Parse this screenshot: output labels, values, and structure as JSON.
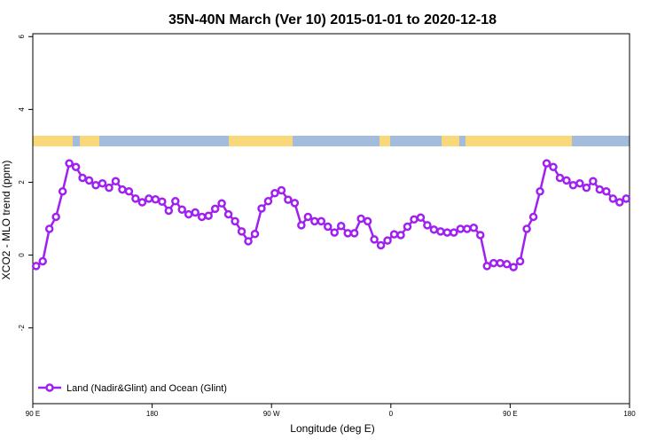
{
  "chart_data": {
    "type": "line",
    "title": "35N-40N March (Ver 10)   2015-01-01 to 2020-12-18",
    "x_label": "Longitude (deg E)",
    "y_label": "XCO2 - MLO trend (ppm)",
    "xlim": [
      90,
      540
    ],
    "ylim": [
      -4.08,
      6.08
    ],
    "xticks": [
      {
        "value": 90,
        "label": "90 E"
      },
      180,
      {
        "value": 270,
        "label": "90 W"
      },
      {
        "value": 360,
        "label": "0"
      },
      {
        "value": 450,
        "label": "90 E"
      },
      {
        "value": 540,
        "label": "180"
      }
    ],
    "yticks": [
      -2,
      0,
      2,
      4,
      6
    ],
    "legend": "bottom-left",
    "series": [
      {
        "name": "Land (Nadir&Glint) and Ocean (Glint)",
        "color": "#a020f0",
        "x": [
          92.5,
          97.5,
          102.5,
          107.5,
          112.5,
          117.5,
          122.5,
          127.5,
          132.5,
          137.5,
          142.5,
          147.5,
          152.5,
          157.5,
          162.5,
          167.5,
          172.5,
          177.5,
          182.5,
          187.5,
          192.5,
          197.5,
          202.5,
          207.5,
          212.5,
          217.5,
          222.5,
          227.5,
          232.5,
          237.5,
          242.5,
          247.5,
          252.5,
          257.5,
          262.5,
          267.5,
          272.5,
          277.5,
          282.5,
          287.5,
          292.5,
          297.5,
          302.5,
          307.5,
          312.5,
          317.5,
          322.5,
          327.5,
          332.5,
          337.5,
          342.5,
          347.5,
          352.5,
          357.5,
          362.5,
          367.5,
          372.5,
          377.5,
          382.5,
          387.5,
          392.5,
          397.5,
          402.5,
          407.5,
          412.5,
          417.5,
          422.5,
          427.5,
          432.5,
          437.5,
          442.5,
          447.5,
          452.5,
          457.5,
          462.5,
          467.5,
          472.5,
          477.5,
          482.5,
          487.5,
          492.5,
          497.5,
          502.5,
          507.5,
          512.5,
          517.5,
          522.5,
          527.5,
          532.5,
          537.5
        ],
        "values": [
          -0.3,
          -0.17,
          0.72,
          1.05,
          1.75,
          2.52,
          2.42,
          2.12,
          2.05,
          1.92,
          1.97,
          1.85,
          2.03,
          1.8,
          1.75,
          1.55,
          1.45,
          1.55,
          1.53,
          1.47,
          1.22,
          1.48,
          1.25,
          1.12,
          1.17,
          1.05,
          1.08,
          1.27,
          1.42,
          1.12,
          0.93,
          0.65,
          0.38,
          0.58,
          1.28,
          1.48,
          1.7,
          1.78,
          1.52,
          1.43,
          0.82,
          1.05,
          0.93,
          0.93,
          0.78,
          0.62,
          0.8,
          0.6,
          0.6,
          1.0,
          0.93,
          0.43,
          0.27,
          0.4,
          0.57,
          0.55,
          0.78,
          0.98,
          1.03,
          0.82,
          0.7,
          0.65,
          0.62,
          0.62,
          0.72,
          0.72,
          0.75,
          0.55,
          -0.3,
          -0.22,
          -0.22,
          -0.25,
          -0.33,
          -0.17,
          0.72,
          1.05,
          1.75,
          2.52,
          2.42,
          2.12,
          2.05,
          1.92,
          1.97,
          1.85,
          2.03,
          1.8,
          1.75,
          1.55,
          1.45,
          1.55
        ]
      }
    ]
  }
}
